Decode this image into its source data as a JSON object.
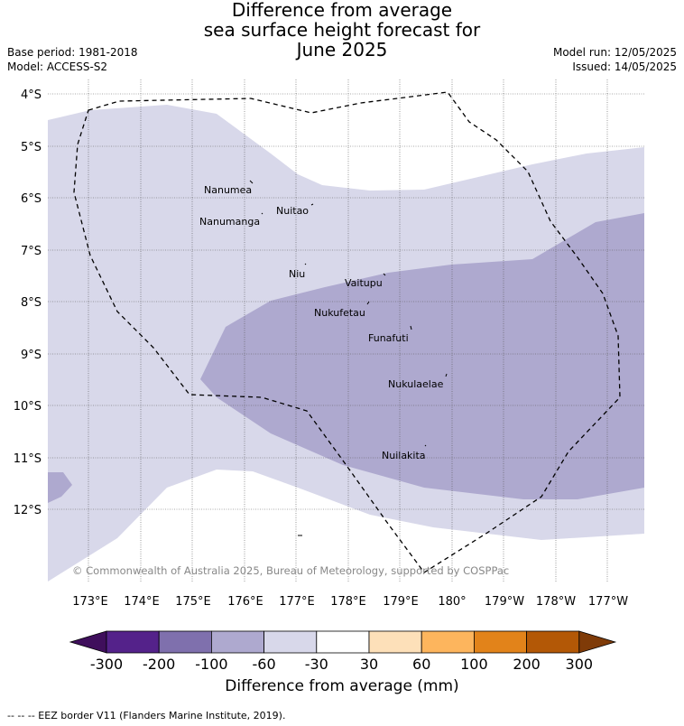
{
  "title": {
    "line1": "Difference from average",
    "line2": "sea surface height forecast for",
    "line3": "June 2025"
  },
  "meta": {
    "base_period": "Base period: 1981-2018",
    "model": "Model: ACCESS-S2",
    "model_run": "Model run: 12/05/2025",
    "issued": "Issued: 14/05/2025"
  },
  "map": {
    "lat_labels": [
      "4°S",
      "5°S",
      "6°S",
      "7°S",
      "8°S",
      "9°S",
      "10°S",
      "11°S",
      "12°S"
    ],
    "lon_labels": [
      "173°E",
      "174°E",
      "175°E",
      "176°E",
      "177°E",
      "178°E",
      "179°E",
      "180°",
      "179°W",
      "178°W",
      "177°W"
    ],
    "places": [
      {
        "name": "Nanumea"
      },
      {
        "name": "Nuitao"
      },
      {
        "name": "Nanumanga"
      },
      {
        "name": "Niu"
      },
      {
        "name": "Vaitupu"
      },
      {
        "name": "Nukufetau"
      },
      {
        "name": "Funafuti"
      },
      {
        "name": "Nukulaelae"
      },
      {
        "name": "Nuilakita"
      }
    ],
    "copyright": "© Commonwealth of Australia 2025, Bureau of Meteorology, supported by COSPPac"
  },
  "legend": {
    "title": "Difference from average (mm)",
    "tick_labels": [
      "-300",
      "-200",
      "-100",
      "-60",
      "-30",
      "30",
      "60",
      "100",
      "200",
      "300"
    ],
    "colors": [
      "#3f0f5c",
      "#54228a",
      "#7f70ad",
      "#aea9cf",
      "#d8d8ea",
      "#ffffff",
      "#fde0b9",
      "#fdb55d",
      "#e2831a",
      "#b35806",
      "#7f3b08"
    ]
  },
  "footnote": "-- -- -- EEZ border V11 (Flanders Marine Institute, 2019)."
}
